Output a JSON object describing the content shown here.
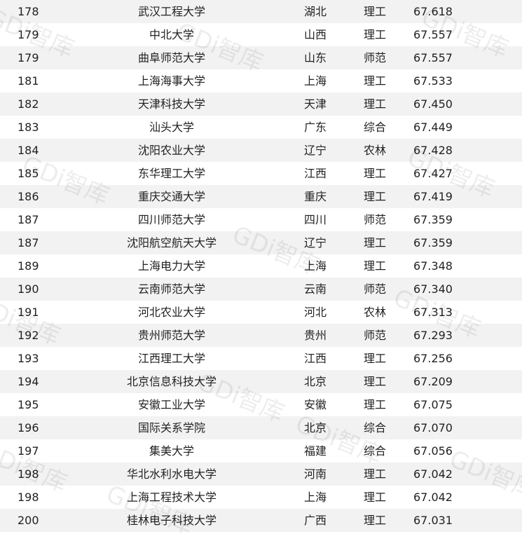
{
  "watermark": "GDi智库",
  "rows": [
    {
      "rank": "178",
      "name": "武汉工程大学",
      "province": "湖北",
      "type": "理工",
      "score": "67.618"
    },
    {
      "rank": "179",
      "name": "中北大学",
      "province": "山西",
      "type": "理工",
      "score": "67.557"
    },
    {
      "rank": "179",
      "name": "曲阜师范大学",
      "province": "山东",
      "type": "师范",
      "score": "67.557"
    },
    {
      "rank": "181",
      "name": "上海海事大学",
      "province": "上海",
      "type": "理工",
      "score": "67.533"
    },
    {
      "rank": "182",
      "name": "天津科技大学",
      "province": "天津",
      "type": "理工",
      "score": "67.450"
    },
    {
      "rank": "183",
      "name": "汕头大学",
      "province": "广东",
      "type": "综合",
      "score": "67.449"
    },
    {
      "rank": "184",
      "name": "沈阳农业大学",
      "province": "辽宁",
      "type": "农林",
      "score": "67.428"
    },
    {
      "rank": "185",
      "name": "东华理工大学",
      "province": "江西",
      "type": "理工",
      "score": "67.427"
    },
    {
      "rank": "186",
      "name": "重庆交通大学",
      "province": "重庆",
      "type": "理工",
      "score": "67.419"
    },
    {
      "rank": "187",
      "name": "四川师范大学",
      "province": "四川",
      "type": "师范",
      "score": "67.359"
    },
    {
      "rank": "187",
      "name": "沈阳航空航天大学",
      "province": "辽宁",
      "type": "理工",
      "score": "67.359"
    },
    {
      "rank": "189",
      "name": "上海电力大学",
      "province": "上海",
      "type": "理工",
      "score": "67.348"
    },
    {
      "rank": "190",
      "name": "云南师范大学",
      "province": "云南",
      "type": "师范",
      "score": "67.340"
    },
    {
      "rank": "191",
      "name": "河北农业大学",
      "province": "河北",
      "type": "农林",
      "score": "67.313"
    },
    {
      "rank": "192",
      "name": "贵州师范大学",
      "province": "贵州",
      "type": "师范",
      "score": "67.293"
    },
    {
      "rank": "193",
      "name": "江西理工大学",
      "province": "江西",
      "type": "理工",
      "score": "67.256"
    },
    {
      "rank": "194",
      "name": "北京信息科技大学",
      "province": "北京",
      "type": "理工",
      "score": "67.209"
    },
    {
      "rank": "195",
      "name": "安徽工业大学",
      "province": "安徽",
      "type": "理工",
      "score": "67.075"
    },
    {
      "rank": "196",
      "name": "国际关系学院",
      "province": "北京",
      "type": "综合",
      "score": "67.070"
    },
    {
      "rank": "197",
      "name": "集美大学",
      "province": "福建",
      "type": "综合",
      "score": "67.056"
    },
    {
      "rank": "198",
      "name": "华北水利水电大学",
      "province": "河南",
      "type": "理工",
      "score": "67.042"
    },
    {
      "rank": "198",
      "name": "上海工程技术大学",
      "province": "上海",
      "type": "理工",
      "score": "67.042"
    },
    {
      "rank": "200",
      "name": "桂林电子科技大学",
      "province": "广西",
      "type": "理工",
      "score": "67.031"
    }
  ]
}
